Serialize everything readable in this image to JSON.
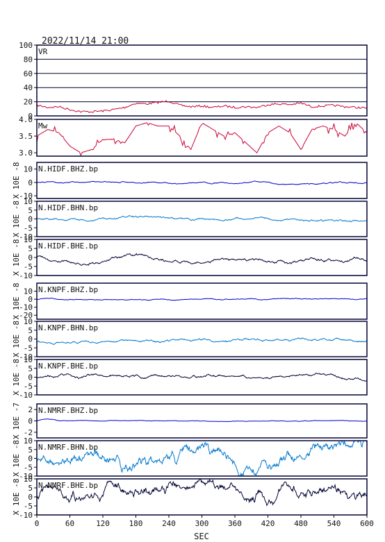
{
  "header": {
    "datetime": "2022/11/14 21:00"
  },
  "x_axis": {
    "label": "SEC",
    "range": [
      0,
      600
    ],
    "ticks": [
      0,
      60,
      120,
      180,
      240,
      300,
      360,
      420,
      480,
      540,
      600
    ]
  },
  "colors": {
    "frame": "#000033",
    "vr_mw": "#cc0033",
    "bhz": "#0000cc",
    "bhn": "#0077cc",
    "bhe": "#000033",
    "text": "#111111"
  },
  "chart_data": [
    {
      "type": "line",
      "name": "VR",
      "ylim": [
        0,
        100
      ],
      "ticks": [
        0,
        20,
        40,
        60,
        80,
        100
      ],
      "grid": true,
      "ylabel": "",
      "color_key": "vr_mw",
      "x": [
        0,
        20,
        40,
        60,
        80,
        100,
        120,
        140,
        160,
        180,
        200,
        220,
        240,
        260,
        280,
        300,
        320,
        340,
        360,
        380,
        400,
        420,
        440,
        460,
        480,
        500,
        520,
        540,
        560,
        580,
        600
      ],
      "values": [
        15,
        12,
        13,
        9,
        6,
        6,
        7,
        9,
        12,
        18,
        17,
        19,
        21,
        15,
        13,
        14,
        12,
        14,
        12,
        13,
        12,
        16,
        17,
        16,
        18,
        13,
        14,
        15,
        13,
        12,
        11
      ]
    },
    {
      "type": "line",
      "name": "Mw",
      "ylim": [
        2.9,
        4.0
      ],
      "ticks": [
        3.0,
        3.5,
        4.0
      ],
      "grid": false,
      "ylabel": "",
      "color_key": "vr_mw",
      "x": [
        0,
        20,
        40,
        60,
        80,
        100,
        120,
        140,
        160,
        180,
        200,
        220,
        240,
        260,
        280,
        300,
        320,
        340,
        360,
        380,
        400,
        420,
        440,
        460,
        480,
        500,
        520,
        540,
        560,
        580,
        600
      ],
      "values": [
        3.5,
        3.7,
        3.6,
        3.2,
        3.0,
        3.1,
        3.4,
        3.4,
        3.3,
        3.8,
        3.9,
        3.8,
        3.8,
        3.5,
        3.1,
        3.9,
        3.7,
        3.5,
        3.6,
        3.3,
        3.0,
        3.6,
        3.8,
        3.6,
        3.1,
        3.7,
        3.8,
        3.7,
        3.5,
        3.9,
        3.6
      ]
    },
    {
      "type": "line",
      "name": "N.HIDF.BHZ.bp",
      "ylabel": "X 10E -8",
      "ylim": [
        -12,
        15
      ],
      "ticks": [
        -10,
        0,
        10
      ],
      "color_key": "bhz",
      "amplitude": 0.5,
      "onset": 0.2
    },
    {
      "type": "line",
      "name": "N.HIDF.BHN.bp",
      "ylabel": "X 10E -8",
      "ylim": [
        -10,
        10
      ],
      "ticks": [
        -10,
        -5,
        0,
        5,
        10
      ],
      "color_key": "bhn",
      "amplitude": 0.6
    },
    {
      "type": "line",
      "name": "N.HIDF.BHE.bp",
      "ylabel": "X 10E -8",
      "ylim": [
        -10,
        10
      ],
      "ticks": [
        -10,
        -5,
        0,
        5,
        10
      ],
      "color_key": "bhe",
      "amplitude": 0.9
    },
    {
      "type": "line",
      "name": "N.KNPF.BHZ.bp",
      "ylabel": "X 10E -8",
      "ylim": [
        -25,
        20
      ],
      "ticks": [
        -20,
        -10,
        0,
        10
      ],
      "color_key": "bhz",
      "amplitude": 0.6,
      "onset": 0.3
    },
    {
      "type": "line",
      "name": "N.KNPF.BHN.bp",
      "ylabel": "X 10E -8",
      "ylim": [
        -10,
        10
      ],
      "ticks": [
        -10,
        -5,
        0,
        5,
        10
      ],
      "color_key": "bhn",
      "amplitude": 0.7,
      "offset": -1.5
    },
    {
      "type": "line",
      "name": "N.KNPF.BHE.bp",
      "ylabel": "X 10E -8",
      "ylim": [
        -10,
        10
      ],
      "ticks": [
        -10,
        -5,
        0,
        5,
        10
      ],
      "color_key": "bhe",
      "amplitude": 0.8
    },
    {
      "type": "line",
      "name": "N.NMRF.BHZ.bp",
      "ylabel": "X 10E -7",
      "ylim": [
        -3,
        3
      ],
      "ticks": [
        -2,
        0,
        2
      ],
      "color_key": "bhz",
      "amplitude": 0.05,
      "onset": 0.4
    },
    {
      "type": "line",
      "name": "N.NMRF.BHN.bp",
      "ylabel": "X 10E -8",
      "ylim": [
        -10,
        10
      ],
      "ticks": [
        -10,
        -5,
        0,
        5,
        10
      ],
      "color_key": "bhn",
      "amplitude": 3.5
    },
    {
      "type": "line",
      "name": "N.NMRF.BHE.bp",
      "ylabel": "X 10E -8",
      "ylim": [
        -10,
        10
      ],
      "ticks": [
        -10,
        -5,
        0,
        5,
        10
      ],
      "color_key": "bhe",
      "amplitude": 3.0
    }
  ]
}
